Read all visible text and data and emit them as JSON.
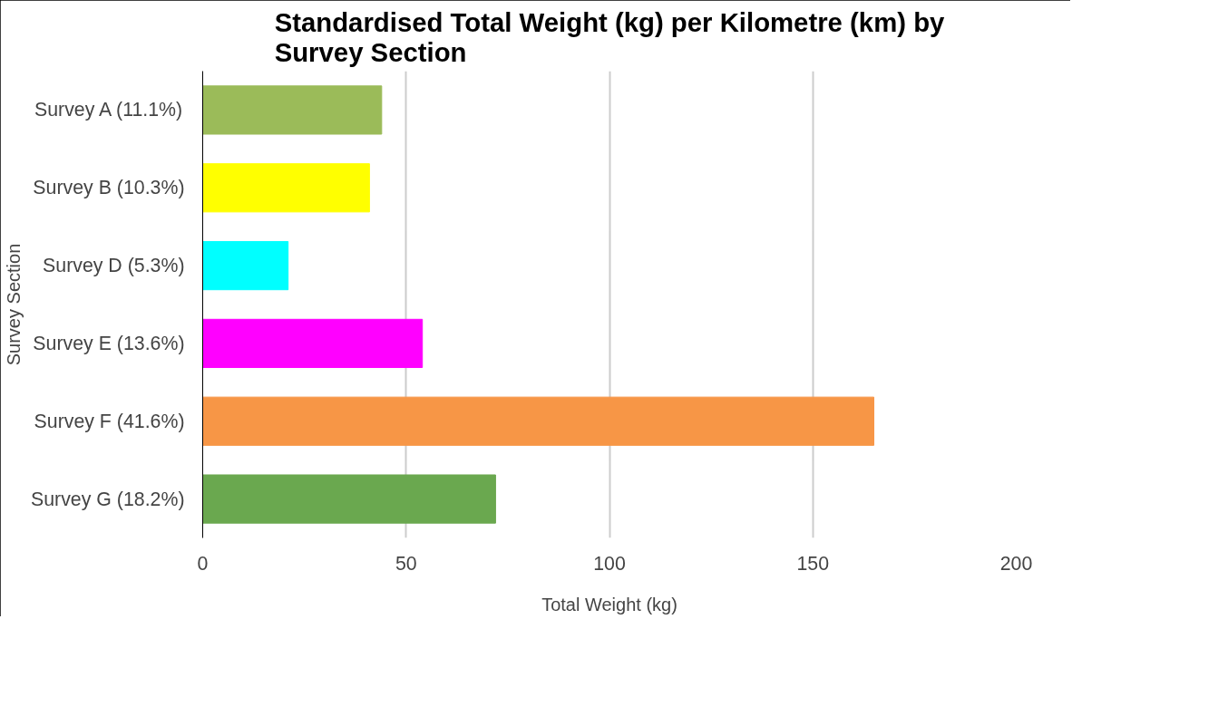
{
  "chart_data": {
    "type": "bar",
    "orientation": "horizontal",
    "title": "Standardised Total Weight (kg) per Kilometre (km) by Survey Section",
    "xlabel": "Total Weight (kg)",
    "ylabel": "Survey Section",
    "categories": [
      "Survey A (11.1%)",
      "Survey B (10.3%)",
      "Survey D (5.3%)",
      "Survey E (13.6%)",
      "Survey F (41.6%)",
      "Survey G (18.2%)"
    ],
    "values": [
      44,
      41,
      21,
      54,
      165,
      72
    ],
    "colors": [
      "#9bbb59",
      "#ffff00",
      "#00ffff",
      "#ff00ff",
      "#f79646",
      "#6aa84f"
    ],
    "xlim": [
      0,
      200
    ],
    "xticks": [
      0,
      50,
      100,
      150,
      200
    ],
    "grid": "x"
  }
}
